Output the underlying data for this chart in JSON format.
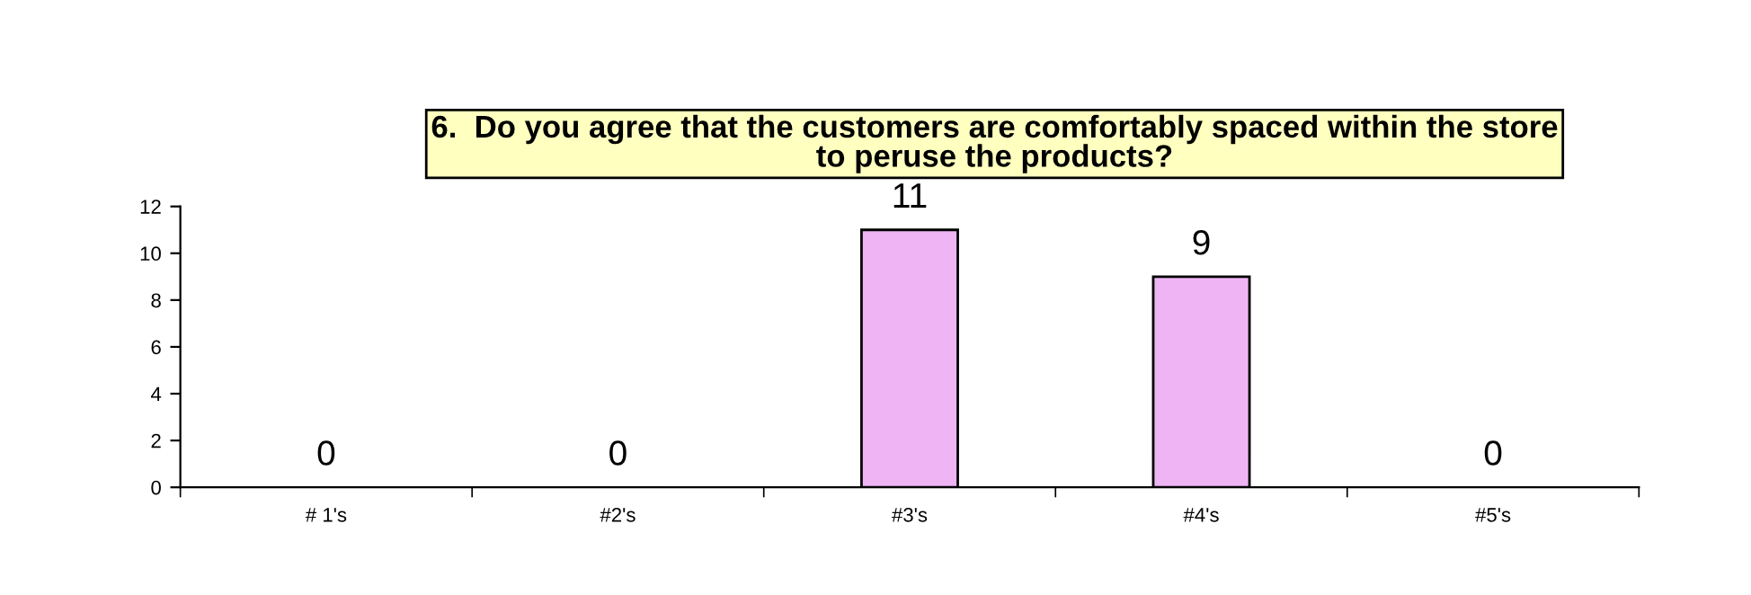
{
  "chart_data": {
    "type": "bar",
    "title": "6.  Do you agree that the customers are comfortably spaced within the store\nto peruse the products?",
    "categories": [
      "# 1's",
      "#2's",
      "#3's",
      "#4's",
      "#5's"
    ],
    "values": [
      0,
      0,
      11,
      9,
      0
    ],
    "color": "#eeb4f4",
    "ylim": [
      0,
      12
    ],
    "yticks": [
      0,
      2,
      4,
      6,
      8,
      10,
      12
    ],
    "grid": false,
    "data_labels": true
  }
}
